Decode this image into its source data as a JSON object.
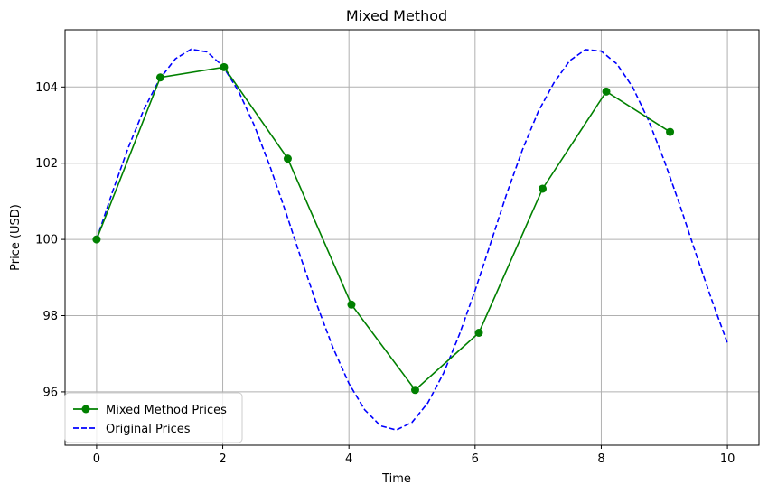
{
  "chart_data": {
    "type": "line",
    "title": "Mixed Method",
    "xlabel": "Time",
    "ylabel": "Price (USD)",
    "xlim": [
      -0.5,
      10.5
    ],
    "ylim": [
      94.6,
      105.5
    ],
    "xticks": [
      0,
      2,
      4,
      6,
      8,
      10
    ],
    "yticks": [
      96,
      98,
      100,
      102,
      104
    ],
    "grid": true,
    "legend_position": "lower-left",
    "series": [
      {
        "name": "Mixed Method Prices",
        "style": "solid-with-markers",
        "color": "#008000",
        "x": [
          0,
          1.01,
          2.02,
          3.03,
          4.04,
          5.05,
          6.06,
          7.07,
          8.08,
          9.09
        ],
        "y": [
          100.0,
          104.25,
          104.52,
          102.12,
          98.29,
          96.05,
          97.55,
          101.33,
          103.88,
          102.82
        ]
      },
      {
        "name": "Original Prices",
        "style": "dashed",
        "color": "#0000ff",
        "x": [
          0,
          0.25,
          0.5,
          0.75,
          1.0,
          1.25,
          1.5,
          1.75,
          2.0,
          2.25,
          2.5,
          2.75,
          3.0,
          3.25,
          3.5,
          3.75,
          4.0,
          4.25,
          4.5,
          4.75,
          5.0,
          5.25,
          5.5,
          5.75,
          6.0,
          6.25,
          6.5,
          6.75,
          7.0,
          7.25,
          7.5,
          7.75,
          8.0,
          8.25,
          8.5,
          8.75,
          9.0,
          9.25,
          9.5,
          9.75,
          10.0
        ],
        "y": [
          100.0,
          101.24,
          102.4,
          103.41,
          104.21,
          104.74,
          104.99,
          104.92,
          104.55,
          103.89,
          102.99,
          101.91,
          100.71,
          99.46,
          98.25,
          97.15,
          96.22,
          95.53,
          95.11,
          95.0,
          95.2,
          95.71,
          96.49,
          97.5,
          98.66,
          99.92,
          101.19,
          102.35,
          103.35,
          104.11,
          104.69,
          104.98,
          104.94,
          104.6,
          103.99,
          103.12,
          102.06,
          100.88,
          99.63,
          98.42,
          97.28
        ]
      }
    ]
  }
}
